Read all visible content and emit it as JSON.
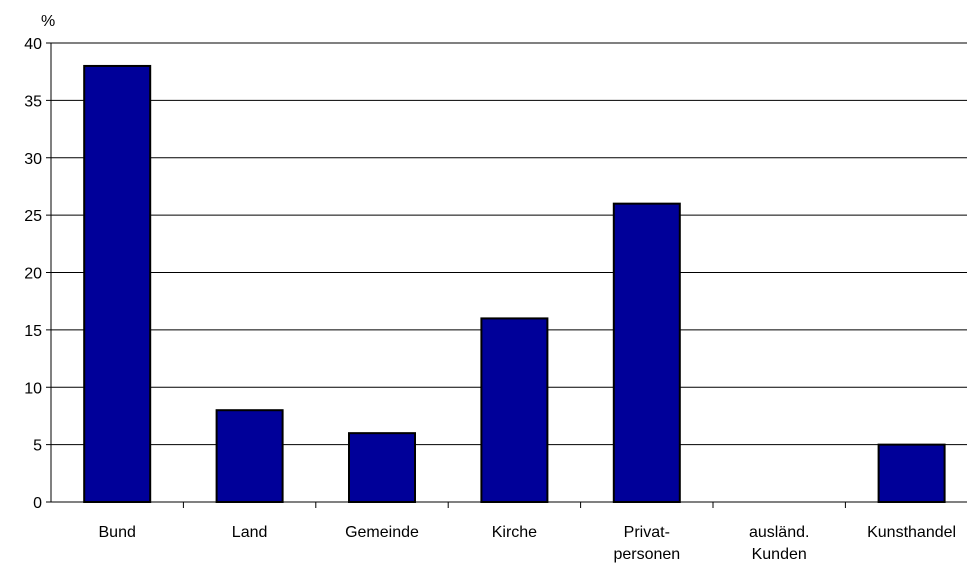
{
  "chart_data": {
    "type": "bar",
    "title": "",
    "xlabel": "",
    "ylabel": "%",
    "ylim": [
      0,
      40
    ],
    "yticks": [
      0,
      5,
      10,
      15,
      20,
      25,
      30,
      35,
      40
    ],
    "grid": true,
    "legend": "none",
    "categories": [
      [
        "Bund"
      ],
      [
        "Land"
      ],
      [
        "Gemeinde"
      ],
      [
        "Kirche"
      ],
      [
        "Privat-",
        "personen"
      ],
      [
        "ausländ.",
        "Kunden"
      ],
      [
        "Kunsthandel"
      ]
    ],
    "values": [
      38,
      8,
      6,
      16,
      26,
      0,
      5
    ],
    "colors": {
      "bar_fill": "#000099",
      "bar_stroke": "#000000",
      "grid": "#000000",
      "axis": "#000000",
      "background": "#ffffff"
    }
  }
}
